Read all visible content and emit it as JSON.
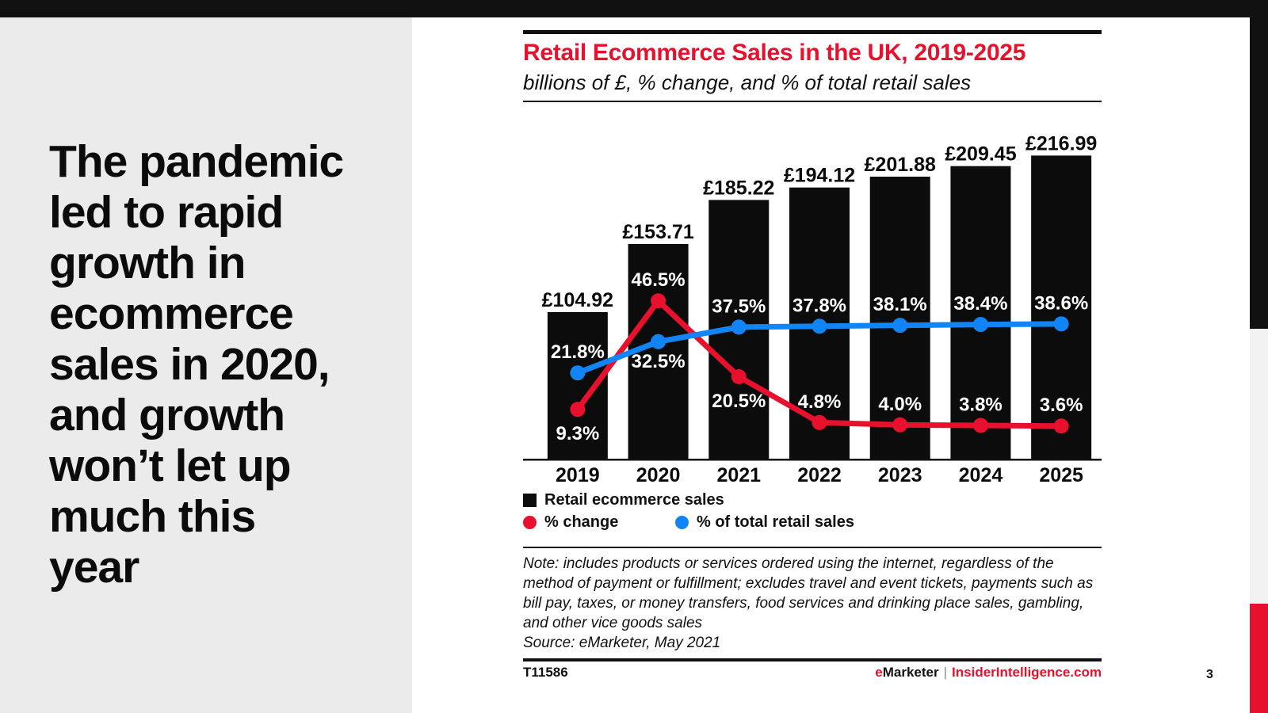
{
  "left_panel": {
    "headline": "The pandemic\nled to rapid\ngrowth in\necommerce\nsales in 2020,\nand growth\nwon’t let up\nmuch this\nyear"
  },
  "chart_header": {
    "title": "Retail Ecommerce Sales in the UK, 2019-2025",
    "subtitle": "billions of £, % change, and % of total retail sales"
  },
  "chart_data": {
    "type": "bar",
    "categories": [
      "2019",
      "2020",
      "2021",
      "2022",
      "2023",
      "2024",
      "2025"
    ],
    "bar_series": {
      "name": "Retail ecommerce sales",
      "unit": "billions of £",
      "color": "#0c0c0c",
      "values": [
        104.92,
        153.71,
        185.22,
        194.12,
        201.88,
        209.45,
        216.99
      ],
      "labels": [
        "£104.92",
        "£153.71",
        "£185.22",
        "£194.12",
        "£201.88",
        "£209.45",
        "£216.99"
      ]
    },
    "line_series": [
      {
        "name": "% change",
        "color": "#e8112d",
        "values": [
          9.3,
          46.5,
          20.5,
          4.8,
          4.0,
          3.8,
          3.6
        ],
        "labels": [
          "9.3%",
          "46.5%",
          "20.5%",
          "4.8%",
          "4.0%",
          "3.8%",
          "3.6%"
        ],
        "label_position": [
          "below",
          "above",
          "below",
          "above",
          "above",
          "above",
          "above"
        ]
      },
      {
        "name": "% of total retail sales",
        "color": "#1285f6",
        "values": [
          21.8,
          32.5,
          37.5,
          37.8,
          38.1,
          38.4,
          38.6
        ],
        "labels": [
          "21.8%",
          "32.5%",
          "37.5%",
          "37.8%",
          "38.1%",
          "38.4%",
          "38.6%"
        ],
        "label_position": [
          "above",
          "below",
          "above",
          "above",
          "above",
          "above",
          "above"
        ]
      }
    ],
    "grid": false,
    "legend_position": "bottom",
    "value_label_color_on_bar": "#ffffff",
    "value_label_color_above_bar": "#0b0b0b"
  },
  "legend": {
    "bar_label": "Retail ecommerce sales",
    "line1_label": "% change",
    "line2_label": "% of total retail sales"
  },
  "note": "Note: includes products or services ordered using the internet, regardless of the method of payment or fulfillment; excludes travel and event tickets, payments such as bill pay, taxes, or money transfers, food services and drinking place sales, gambling, and other vice goods sales",
  "source": "Source: eMarketer, May 2021",
  "footer": {
    "chart_id": "T11586",
    "brand_prefix": "e",
    "brand_name": "Marketer",
    "separator": "|",
    "brand_site": "InsiderIntelligence.com"
  },
  "page_number": "3",
  "colors": {
    "accent_red": "#e8112d",
    "line_blue": "#1285f6",
    "bar_black": "#0c0c0c",
    "panel_gray": "#ebebeb",
    "strip_gray": "#f2f2f2"
  }
}
